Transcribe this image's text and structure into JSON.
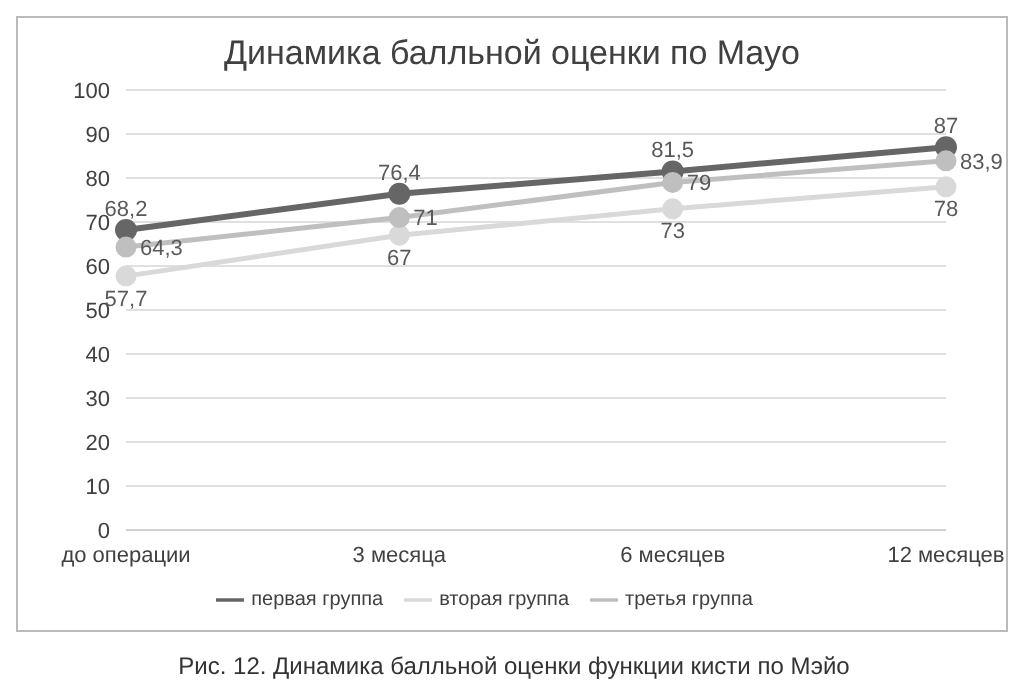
{
  "chart_data": {
    "type": "line",
    "title": "Динамика балльной оценки по Mayo",
    "categories": [
      "до операции",
      "3 месяца",
      "6 месяцев",
      "12 месяцев"
    ],
    "series": [
      {
        "name": "первая группа",
        "color": "#666666",
        "values": [
          68.2,
          76.4,
          81.5,
          87
        ],
        "value_labels": [
          "68,2",
          "76,4",
          "81,5",
          "87"
        ]
      },
      {
        "name": "вторая группа",
        "color": "#d9d9d9",
        "values": [
          57.7,
          67,
          73,
          78
        ],
        "value_labels": [
          "57,7",
          "67",
          "73",
          "78"
        ]
      },
      {
        "name": "третья группа",
        "color": "#bfbfbf",
        "values": [
          64.3,
          71,
          79,
          83.9
        ],
        "value_labels": [
          "64,3",
          "71",
          "79",
          "83,9"
        ]
      }
    ],
    "ylim": [
      0,
      100
    ],
    "yticks": [
      0,
      10,
      20,
      30,
      40,
      50,
      60,
      70,
      80,
      90,
      100
    ],
    "grid": "y",
    "legend": "bottom",
    "marker": "circle",
    "line_style": "solid",
    "annotations": [
      "Рис. 12. Динамика балльной оценки функции кисти по Мэйо"
    ]
  }
}
